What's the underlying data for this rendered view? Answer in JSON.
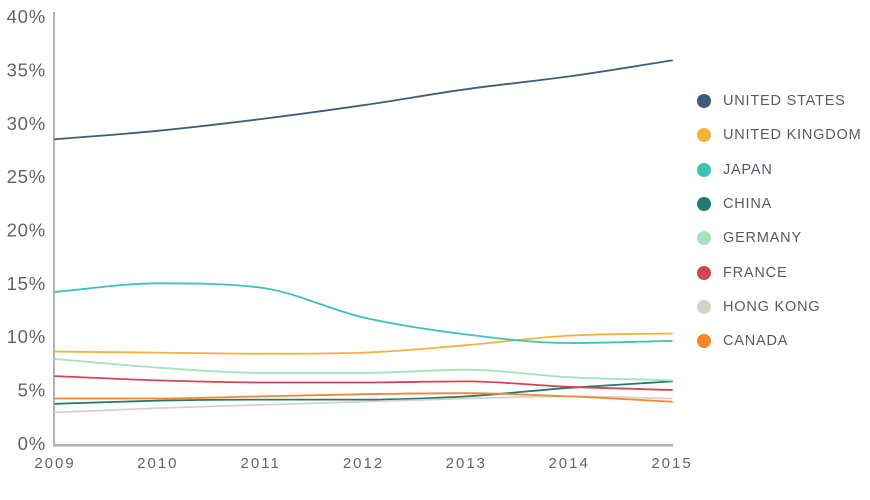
{
  "page": {
    "background": "#ffffff"
  },
  "chart_data": {
    "type": "line",
    "title": "",
    "xlabel": "",
    "ylabel": "",
    "grid": false,
    "legend_position": "right",
    "x": [
      2009,
      2010,
      2011,
      2012,
      2013,
      2014,
      2015
    ],
    "x_tick_labels": [
      "2009",
      "2010",
      "2011",
      "2012",
      "2013",
      "2014",
      "2015"
    ],
    "y_ticks": [
      40,
      35,
      30,
      25,
      20,
      15,
      10,
      5,
      0
    ],
    "y_tick_labels": [
      "40%",
      "35%",
      "30%",
      "25%",
      "20%",
      "15%",
      "10%",
      "5%",
      "0%"
    ],
    "ylim": [
      0,
      40
    ],
    "series": [
      {
        "name": "UNITED STATES",
        "color": "#3F5D78",
        "values": [
          28.5,
          29.3,
          30.4,
          31.7,
          33.2,
          34.4,
          35.9
        ]
      },
      {
        "name": "UNITED KINGDOM",
        "color": "#F5B13D",
        "values": [
          8.6,
          8.5,
          8.4,
          8.5,
          9.2,
          10.1,
          10.3
        ]
      },
      {
        "name": "JAPAN",
        "color": "#40C1B5",
        "values": [
          14.2,
          15.0,
          14.6,
          11.8,
          10.2,
          9.4,
          9.6
        ]
      },
      {
        "name": "CHINA",
        "color": "#1F7A6F",
        "values": [
          3.7,
          4.0,
          4.1,
          4.1,
          4.4,
          5.2,
          5.8
        ]
      },
      {
        "name": "GERMANY",
        "color": "#A5E3C0",
        "values": [
          7.9,
          7.1,
          6.6,
          6.6,
          6.9,
          6.2,
          5.9
        ]
      },
      {
        "name": "FRANCE",
        "color": "#D5454F",
        "values": [
          6.3,
          5.9,
          5.7,
          5.7,
          5.8,
          5.3,
          5.0
        ]
      },
      {
        "name": "HONG KONG",
        "color": "#D8D1C5",
        "values": [
          2.9,
          3.3,
          3.6,
          3.9,
          4.2,
          4.4,
          4.2
        ]
      },
      {
        "name": "CANADA",
        "color": "#F1862F",
        "values": [
          4.2,
          4.2,
          4.4,
          4.6,
          4.7,
          4.4,
          3.9
        ]
      }
    ],
    "axis_color": "#AEB1B5",
    "tick_text_color": "#5C666F",
    "legend_text_color": "#525C66"
  }
}
